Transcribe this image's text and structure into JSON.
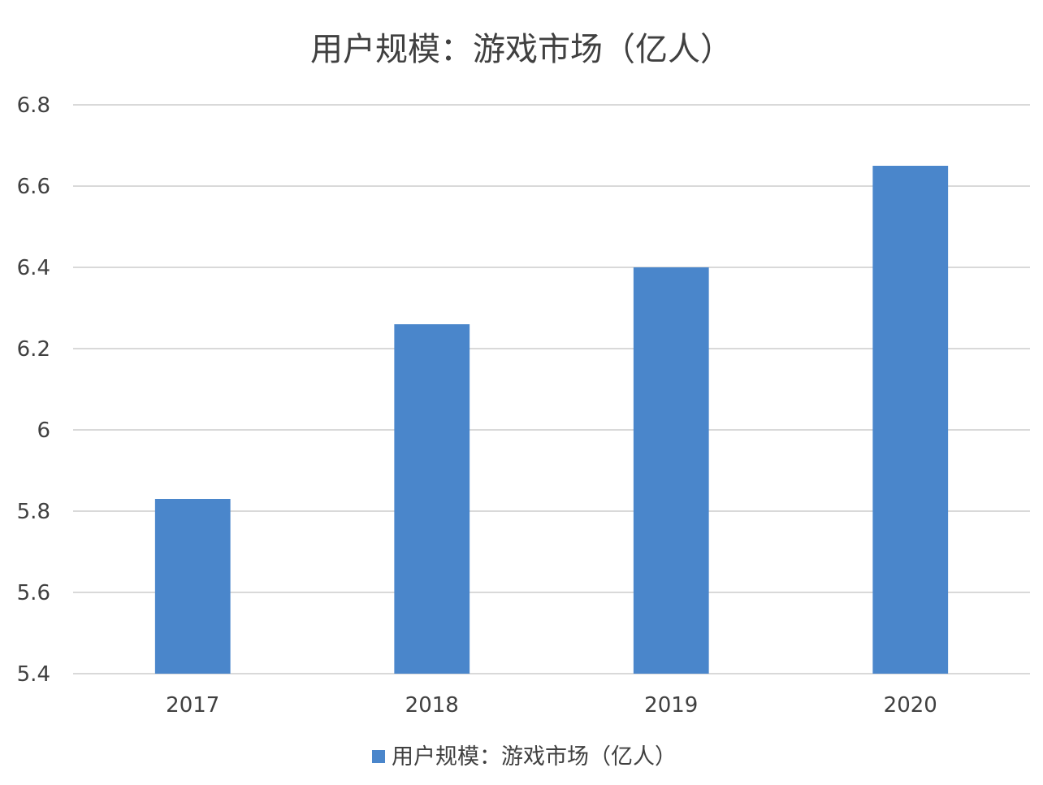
{
  "chart_data": {
    "type": "bar",
    "title": "用户规模：游戏市场（亿人）",
    "categories": [
      "2017",
      "2018",
      "2019",
      "2020"
    ],
    "series": [
      {
        "name": "用户规模：游戏市场（亿人）",
        "values": [
          5.83,
          6.26,
          6.4,
          6.65
        ]
      }
    ],
    "xlabel": "",
    "ylabel": "",
    "ylim": [
      5.4,
      6.8
    ],
    "yticks": [
      "5.4",
      "5.6",
      "5.8",
      "6",
      "6.2",
      "6.4",
      "6.6",
      "6.8"
    ],
    "grid": true,
    "legend_position": "bottom",
    "colors": {
      "bar": "#4A86CB",
      "grid": "#D9D9D9",
      "text": "#404040"
    }
  }
}
